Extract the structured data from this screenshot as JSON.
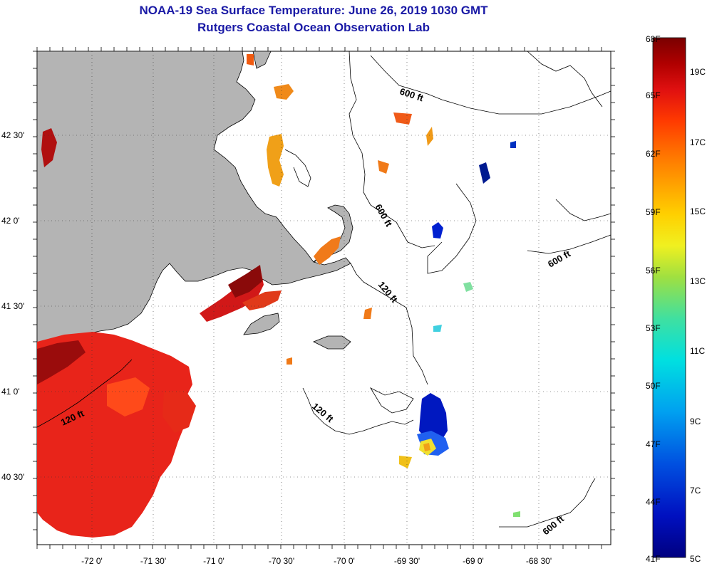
{
  "title": "NOAA-19 Sea Surface Temperature:  June 26, 2019 1030 GMT",
  "subtitle": "Rutgers Coastal Ocean Observation Lab",
  "x_ticks": [
    "-72 0'",
    "-71 30'",
    "-71 0'",
    "-70 30'",
    "-70 0'",
    "-69 30'",
    "-69 0'",
    "-68 30'"
  ],
  "y_ticks": [
    "42 30'",
    "42 0'",
    "41 30'",
    "41 0'",
    "40 30'"
  ],
  "contour_labels": [
    "600 ft",
    "600 ft",
    "600 ft",
    "600 ft",
    "120 ft",
    "120 ft",
    "120 ft"
  ],
  "colorbar": {
    "f_labels": [
      "68F",
      "65F",
      "62F",
      "59F",
      "56F",
      "53F",
      "50F",
      "47F",
      "44F",
      "41F"
    ],
    "c_labels": [
      "19C",
      "17C",
      "15C",
      "13C",
      "11C",
      "9C",
      "7C",
      "5C"
    ],
    "colors": [
      "#7a0000",
      "#b00000",
      "#e01010",
      "#ff3a00",
      "#ff7000",
      "#ffa000",
      "#ffd000",
      "#f0f020",
      "#a0e040",
      "#40e0a0",
      "#00e0e0",
      "#00b0f0",
      "#0070e0",
      "#0030d0",
      "#000090"
    ]
  },
  "colors": {
    "land": "#b4b4b4",
    "title": "#1a1aa6"
  }
}
